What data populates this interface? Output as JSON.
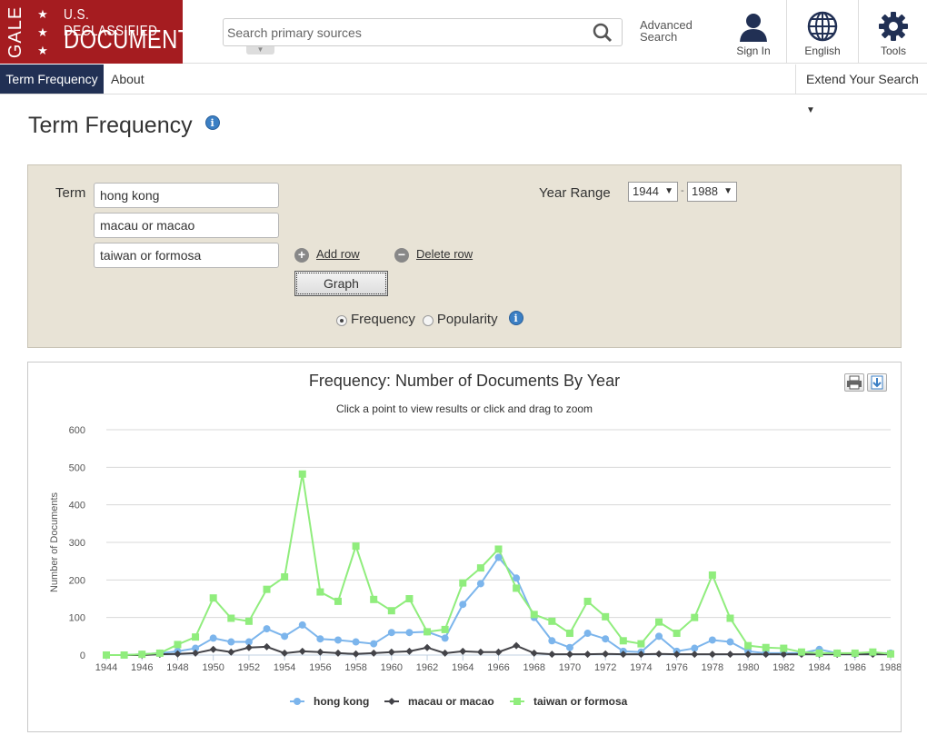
{
  "logo": {
    "gale": "GALE",
    "line1": "U.S. DECLASSIFIED",
    "line2": "DOCUMENTS"
  },
  "search": {
    "placeholder": "Search primary sources"
  },
  "header": {
    "advanced_search": "Advanced Search",
    "sign_in": "Sign In",
    "language": "English",
    "tools": "Tools"
  },
  "subnav": {
    "active_tab": "Term Frequency",
    "about": "About",
    "extend": "Extend Your Search"
  },
  "page": {
    "title": "Term Frequency"
  },
  "form": {
    "term_label": "Term",
    "terms": [
      "hong kong",
      "macau or macao",
      "taiwan or formosa"
    ],
    "add_row": "Add row",
    "delete_row": "Delete row",
    "graph_button": "Graph",
    "year_range_label": "Year Range",
    "year_from": "1944",
    "year_sep": "-",
    "year_to": "1988",
    "mode_options": [
      "Frequency",
      "Popularity"
    ],
    "mode_selected": "Frequency"
  },
  "chart_data": {
    "type": "line",
    "title": "Frequency: Number of Documents By Year",
    "subtitle": "Click a point to view results or click and drag to zoom",
    "ylabel": "Number of Documents",
    "xlabel": "",
    "ylim": [
      0,
      600
    ],
    "yticks": [
      0,
      100,
      200,
      300,
      400,
      500,
      600
    ],
    "xticks": [
      1944,
      1946,
      1948,
      1950,
      1952,
      1954,
      1956,
      1958,
      1960,
      1962,
      1964,
      1966,
      1968,
      1970,
      1972,
      1974,
      1976,
      1978,
      1980,
      1982,
      1984,
      1986,
      1988
    ],
    "x": [
      1944,
      1945,
      1946,
      1947,
      1948,
      1949,
      1950,
      1951,
      1952,
      1953,
      1954,
      1955,
      1956,
      1957,
      1958,
      1959,
      1960,
      1961,
      1962,
      1963,
      1964,
      1965,
      1966,
      1967,
      1968,
      1969,
      1970,
      1971,
      1972,
      1973,
      1974,
      1975,
      1976,
      1977,
      1978,
      1979,
      1980,
      1981,
      1982,
      1983,
      1984,
      1985,
      1986,
      1987,
      1988
    ],
    "legend_position": "bottom",
    "series": [
      {
        "name": "hong kong",
        "color": "#7cb5ec",
        "marker": "circle",
        "values": [
          0,
          0,
          2,
          5,
          10,
          18,
          45,
          35,
          35,
          70,
          50,
          80,
          43,
          40,
          35,
          30,
          60,
          60,
          62,
          45,
          135,
          190,
          260,
          205,
          100,
          38,
          20,
          58,
          43,
          10,
          8,
          50,
          10,
          18,
          40,
          35,
          10,
          5,
          5,
          5,
          15,
          5,
          3,
          5,
          5
        ]
      },
      {
        "name": "macau or macao",
        "color": "#434348",
        "marker": "diamond",
        "values": [
          0,
          0,
          0,
          2,
          3,
          5,
          15,
          8,
          20,
          22,
          5,
          10,
          8,
          5,
          3,
          5,
          8,
          10,
          20,
          5,
          10,
          8,
          8,
          25,
          5,
          2,
          2,
          2,
          3,
          2,
          2,
          3,
          2,
          2,
          2,
          2,
          2,
          2,
          2,
          2,
          2,
          2,
          2,
          2,
          2
        ]
      },
      {
        "name": "taiwan or formosa",
        "color": "#90ed7d",
        "marker": "square",
        "values": [
          0,
          0,
          2,
          5,
          28,
          48,
          152,
          98,
          90,
          175,
          208,
          482,
          168,
          143,
          290,
          148,
          118,
          150,
          62,
          68,
          192,
          232,
          282,
          178,
          108,
          90,
          58,
          143,
          102,
          38,
          30,
          88,
          58,
          100,
          213,
          98,
          25,
          20,
          18,
          8,
          5,
          5,
          5,
          8,
          3
        ]
      }
    ]
  }
}
